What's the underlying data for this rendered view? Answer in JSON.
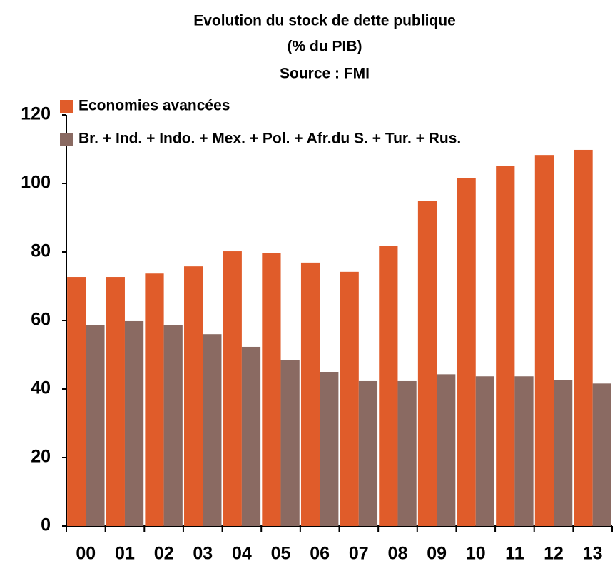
{
  "chart_data": {
    "type": "bar",
    "title": "Evolution du stock de dette publique",
    "subtitle": "(% du PIB)",
    "source": "Source : FMI",
    "categories": [
      "00",
      "01",
      "02",
      "03",
      "04",
      "05",
      "06",
      "07",
      "08",
      "09",
      "10",
      "11",
      "12",
      "13"
    ],
    "series": [
      {
        "name": "Economies avancées",
        "color": "#e05c2a",
        "values": [
          72.7,
          72.7,
          73.7,
          75.8,
          80.2,
          79.6,
          76.9,
          74.2,
          81.7,
          95,
          101.5,
          105.2,
          108.3,
          109.8
        ]
      },
      {
        "name": "Br. + Ind. + Indo. + Mex. + Pol. + Afr.du S. + Tur. + Rus.",
        "color": "#8a6a62",
        "values": [
          58.7,
          59.8,
          58.7,
          56,
          52.3,
          48.5,
          45,
          42.3,
          42.3,
          44.3,
          43.7,
          43.7,
          42.7,
          41.6
        ]
      }
    ],
    "ylim": [
      0,
      120
    ],
    "yticks": [
      0,
      20,
      40,
      60,
      80,
      100,
      120
    ],
    "grid": false
  }
}
